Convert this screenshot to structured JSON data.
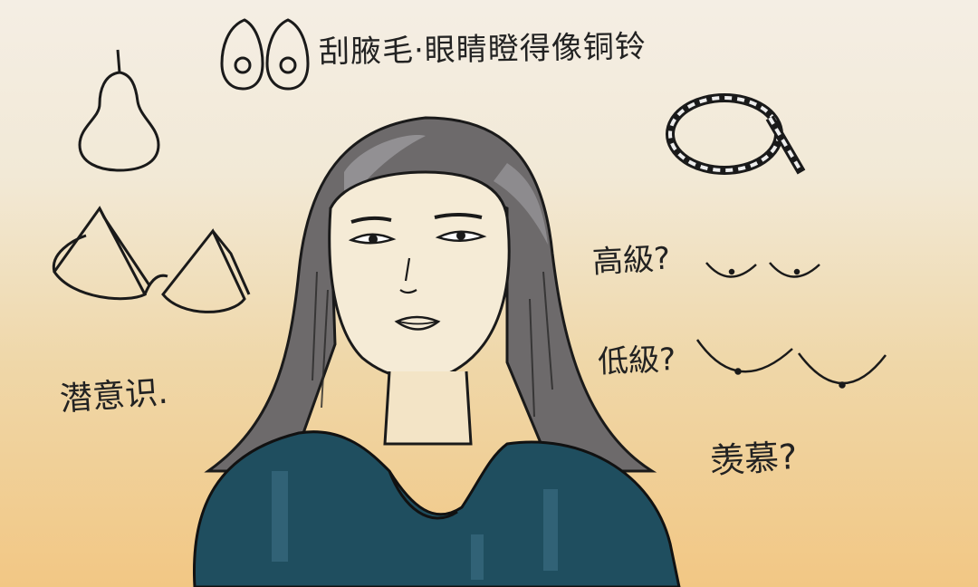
{
  "notes": {
    "title": "刮腋毛·眼睛瞪得像铜铃",
    "high": "高級?",
    "low": "低級?",
    "subconscious": "潜意识.",
    "envy": "羡慕?"
  }
}
